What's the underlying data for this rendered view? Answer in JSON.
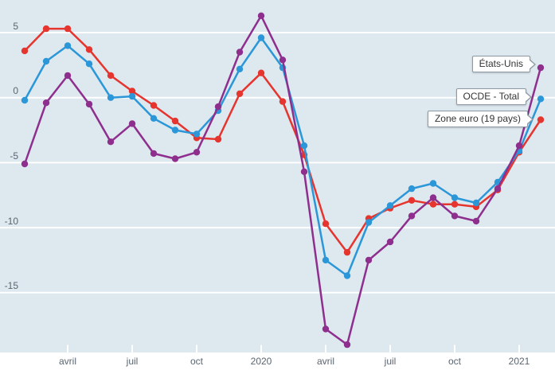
{
  "colors": {
    "plot_background": "#dde8ef",
    "grid": "#ffffff",
    "axis_label": "#5a6570",
    "tooltip_border": "#8d99a3",
    "tooltip_text": "#333333"
  },
  "chart_data": {
    "type": "line",
    "title": "",
    "xlabel": "",
    "ylabel": "",
    "grid": "horizontal-only, white lines on light blue background",
    "legend_position": "inline tooltips at right end of lines",
    "n_points": 25,
    "ylim": [
      -20,
      7
    ],
    "y_axis": {
      "ticks": [
        {
          "label": "5",
          "value": 5
        },
        {
          "label": "0",
          "value": 0
        },
        {
          "label": "-5",
          "value": -5
        },
        {
          "label": "-10",
          "value": -10
        },
        {
          "label": "-15",
          "value": -15
        }
      ]
    },
    "x_axis": {
      "ticks": [
        {
          "label": "avril",
          "index": 2
        },
        {
          "label": "juil",
          "index": 5
        },
        {
          "label": "oct",
          "index": 8
        },
        {
          "label": "2020",
          "index": 11
        },
        {
          "label": "avril",
          "index": 14
        },
        {
          "label": "juil",
          "index": 17
        },
        {
          "label": "oct",
          "index": 20
        },
        {
          "label": "2021",
          "index": 23
        }
      ]
    },
    "series": [
      {
        "name": "États-Unis",
        "color": "#8e2f8e",
        "values": [
          -5.1,
          -0.4,
          1.7,
          -0.5,
          -3.4,
          -2.0,
          -4.3,
          -4.7,
          -4.2,
          -0.7,
          3.5,
          6.3,
          2.9,
          -5.7,
          -17.8,
          -19.0,
          -12.5,
          -11.1,
          -9.1,
          -7.7,
          -9.1,
          -9.5,
          -7.0,
          -3.7,
          2.3
        ]
      },
      {
        "name": "OCDE - Total",
        "color": "#2b97d8",
        "values": [
          -0.2,
          2.8,
          4.0,
          2.6,
          0.0,
          0.1,
          -1.6,
          -2.5,
          -2.8,
          -1.0,
          2.2,
          4.6,
          2.3,
          -3.7,
          -12.5,
          -13.7,
          -9.6,
          -8.3,
          -7.0,
          -6.6,
          -7.7,
          -8.1,
          -6.5,
          -4.1,
          -0.1
        ]
      },
      {
        "name": "Zone euro (19 pays)",
        "color": "#e6352f",
        "values": [
          3.6,
          5.3,
          5.3,
          3.7,
          1.7,
          0.5,
          -0.6,
          -1.8,
          -3.1,
          -3.2,
          0.3,
          1.9,
          -0.3,
          -4.4,
          -9.7,
          -11.9,
          -9.3,
          -8.5,
          -7.9,
          -8.2,
          -8.2,
          -8.4,
          -7.1,
          -4.2,
          -1.7
        ]
      }
    ]
  }
}
